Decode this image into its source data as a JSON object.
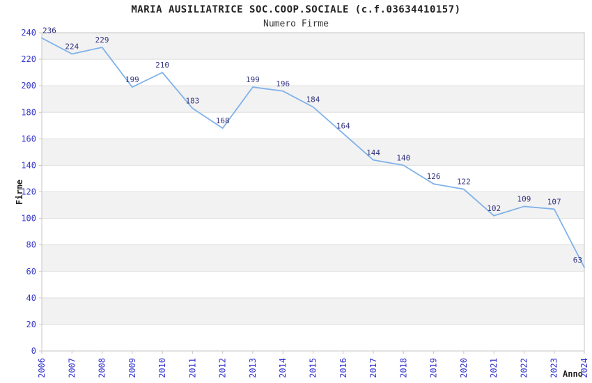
{
  "header": {
    "title": "MARIA AUSILIATRICE SOC.COOP.SOCIALE (c.f.03634410157)",
    "subtitle": "Numero Firme"
  },
  "chart_data": {
    "type": "line",
    "title": "MARIA AUSILIATRICE SOC.COOP.SOCIALE (c.f.03634410157)",
    "subtitle": "Numero Firme",
    "xlabel": "Anno",
    "ylabel": "Firme",
    "categories": [
      "2006",
      "2007",
      "2008",
      "2009",
      "2010",
      "2011",
      "2012",
      "2013",
      "2014",
      "2015",
      "2016",
      "2017",
      "2018",
      "2019",
      "2020",
      "2021",
      "2022",
      "2023",
      "2024"
    ],
    "series": [
      {
        "name": "Numero Firme",
        "values": [
          236,
          224,
          229,
          199,
          210,
          183,
          168,
          199,
          196,
          184,
          164,
          144,
          140,
          126,
          122,
          102,
          109,
          107,
          63
        ]
      }
    ],
    "ylim": [
      0,
      240
    ],
    "ytick_step": 20,
    "grid": "horizontal gridlines with alternating shaded bands",
    "legend": "none",
    "point_labels": "shown above each point",
    "x_tick_rotation_deg": -90,
    "colors": {
      "line": "#7FB2E9",
      "point_label": "#333380",
      "tick_label": "#3333CC",
      "band": "#F2F2F2",
      "grid_line": "#DEDEDE",
      "plot_border": "#C6C6C6",
      "text": "#222222",
      "background": "#FFFFFF"
    }
  }
}
